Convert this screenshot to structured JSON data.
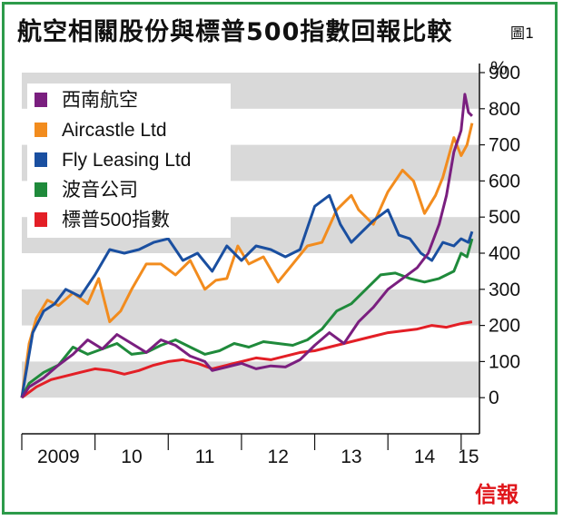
{
  "title": "航空相關股份與標普500指數回報比較",
  "figure_label": "圖1",
  "brand": "信報",
  "chart_data": {
    "type": "line",
    "title": "航空相關股份與標普500指數回報比較",
    "ylabel": "%",
    "ylim": [
      -100,
      900
    ],
    "yticks": [
      0,
      100,
      200,
      300,
      400,
      500,
      600,
      700,
      800,
      900
    ],
    "xlim": [
      2009.0,
      2015.25
    ],
    "xticks": [
      {
        "label": "2009",
        "value": 2009.5
      },
      {
        "label": "10",
        "value": 2010.5
      },
      {
        "label": "11",
        "value": 2011.5
      },
      {
        "label": "12",
        "value": 2012.5
      },
      {
        "label": "13",
        "value": 2013.5
      },
      {
        "label": "14",
        "value": 2014.5
      },
      {
        "label": "15",
        "value": 2015.1
      }
    ],
    "grid": "alternating horizontal bands",
    "legend_position": "top-left",
    "series": [
      {
        "name": "西南航空",
        "color": "#7a1f7f",
        "points": [
          [
            2009.0,
            0
          ],
          [
            2009.1,
            30
          ],
          [
            2009.3,
            55
          ],
          [
            2009.5,
            90
          ],
          [
            2009.7,
            120
          ],
          [
            2009.9,
            160
          ],
          [
            2010.1,
            135
          ],
          [
            2010.3,
            175
          ],
          [
            2010.5,
            150
          ],
          [
            2010.7,
            125
          ],
          [
            2010.9,
            160
          ],
          [
            2011.1,
            145
          ],
          [
            2011.3,
            115
          ],
          [
            2011.5,
            100
          ],
          [
            2011.6,
            75
          ],
          [
            2011.8,
            85
          ],
          [
            2012.0,
            95
          ],
          [
            2012.2,
            80
          ],
          [
            2012.4,
            88
          ],
          [
            2012.6,
            85
          ],
          [
            2012.8,
            105
          ],
          [
            2013.0,
            145
          ],
          [
            2013.2,
            180
          ],
          [
            2013.4,
            150
          ],
          [
            2013.6,
            210
          ],
          [
            2013.8,
            250
          ],
          [
            2014.0,
            300
          ],
          [
            2014.2,
            330
          ],
          [
            2014.4,
            360
          ],
          [
            2014.55,
            400
          ],
          [
            2014.7,
            480
          ],
          [
            2014.8,
            560
          ],
          [
            2014.9,
            680
          ],
          [
            2015.0,
            740
          ],
          [
            2015.05,
            840
          ],
          [
            2015.1,
            790
          ],
          [
            2015.15,
            780
          ]
        ]
      },
      {
        "name": "Aircastle Ltd",
        "color": "#f28c1e",
        "points": [
          [
            2009.0,
            0
          ],
          [
            2009.1,
            150
          ],
          [
            2009.2,
            220
          ],
          [
            2009.35,
            270
          ],
          [
            2009.5,
            255
          ],
          [
            2009.7,
            290
          ],
          [
            2009.9,
            260
          ],
          [
            2010.05,
            330
          ],
          [
            2010.2,
            210
          ],
          [
            2010.35,
            240
          ],
          [
            2010.5,
            300
          ],
          [
            2010.7,
            370
          ],
          [
            2010.9,
            370
          ],
          [
            2011.1,
            340
          ],
          [
            2011.3,
            380
          ],
          [
            2011.5,
            300
          ],
          [
            2011.65,
            325
          ],
          [
            2011.8,
            330
          ],
          [
            2011.95,
            420
          ],
          [
            2012.1,
            370
          ],
          [
            2012.3,
            390
          ],
          [
            2012.5,
            320
          ],
          [
            2012.7,
            370
          ],
          [
            2012.9,
            420
          ],
          [
            2013.1,
            430
          ],
          [
            2013.3,
            520
          ],
          [
            2013.5,
            560
          ],
          [
            2013.6,
            520
          ],
          [
            2013.8,
            480
          ],
          [
            2014.0,
            570
          ],
          [
            2014.2,
            630
          ],
          [
            2014.35,
            600
          ],
          [
            2014.5,
            510
          ],
          [
            2014.65,
            560
          ],
          [
            2014.75,
            610
          ],
          [
            2014.9,
            720
          ],
          [
            2015.0,
            670
          ],
          [
            2015.08,
            700
          ],
          [
            2015.15,
            760
          ]
        ]
      },
      {
        "name": "Fly Leasing Ltd",
        "color": "#1a4fa0",
        "points": [
          [
            2009.0,
            0
          ],
          [
            2009.15,
            180
          ],
          [
            2009.3,
            240
          ],
          [
            2009.45,
            260
          ],
          [
            2009.6,
            300
          ],
          [
            2009.8,
            280
          ],
          [
            2010.0,
            340
          ],
          [
            2010.2,
            410
          ],
          [
            2010.4,
            400
          ],
          [
            2010.6,
            410
          ],
          [
            2010.8,
            430
          ],
          [
            2011.0,
            440
          ],
          [
            2011.2,
            380
          ],
          [
            2011.4,
            400
          ],
          [
            2011.6,
            350
          ],
          [
            2011.8,
            420
          ],
          [
            2012.0,
            380
          ],
          [
            2012.2,
            420
          ],
          [
            2012.4,
            410
          ],
          [
            2012.6,
            390
          ],
          [
            2012.8,
            410
          ],
          [
            2013.0,
            530
          ],
          [
            2013.2,
            560
          ],
          [
            2013.35,
            480
          ],
          [
            2013.5,
            430
          ],
          [
            2013.65,
            460
          ],
          [
            2013.8,
            490
          ],
          [
            2014.0,
            520
          ],
          [
            2014.15,
            450
          ],
          [
            2014.3,
            440
          ],
          [
            2014.45,
            400
          ],
          [
            2014.6,
            380
          ],
          [
            2014.75,
            430
          ],
          [
            2014.9,
            420
          ],
          [
            2015.0,
            440
          ],
          [
            2015.1,
            430
          ],
          [
            2015.15,
            460
          ]
        ]
      },
      {
        "name": "波音公司",
        "color": "#1f8a3b",
        "points": [
          [
            2009.0,
            0
          ],
          [
            2009.1,
            40
          ],
          [
            2009.3,
            70
          ],
          [
            2009.5,
            90
          ],
          [
            2009.7,
            140
          ],
          [
            2009.9,
            120
          ],
          [
            2010.1,
            135
          ],
          [
            2010.3,
            150
          ],
          [
            2010.5,
            120
          ],
          [
            2010.7,
            125
          ],
          [
            2010.9,
            145
          ],
          [
            2011.1,
            160
          ],
          [
            2011.3,
            140
          ],
          [
            2011.5,
            120
          ],
          [
            2011.7,
            130
          ],
          [
            2011.9,
            150
          ],
          [
            2012.1,
            140
          ],
          [
            2012.3,
            155
          ],
          [
            2012.5,
            150
          ],
          [
            2012.7,
            145
          ],
          [
            2012.9,
            160
          ],
          [
            2013.1,
            190
          ],
          [
            2013.3,
            240
          ],
          [
            2013.5,
            260
          ],
          [
            2013.7,
            300
          ],
          [
            2013.9,
            340
          ],
          [
            2014.1,
            345
          ],
          [
            2014.3,
            330
          ],
          [
            2014.5,
            320
          ],
          [
            2014.7,
            330
          ],
          [
            2014.9,
            350
          ],
          [
            2015.0,
            400
          ],
          [
            2015.08,
            390
          ],
          [
            2015.15,
            440
          ]
        ]
      },
      {
        "name": "標普500指數",
        "color": "#e31f26",
        "points": [
          [
            2009.0,
            0
          ],
          [
            2009.2,
            30
          ],
          [
            2009.4,
            50
          ],
          [
            2009.6,
            60
          ],
          [
            2009.8,
            70
          ],
          [
            2010.0,
            80
          ],
          [
            2010.2,
            75
          ],
          [
            2010.4,
            65
          ],
          [
            2010.6,
            75
          ],
          [
            2010.8,
            90
          ],
          [
            2011.0,
            100
          ],
          [
            2011.2,
            105
          ],
          [
            2011.4,
            95
          ],
          [
            2011.6,
            80
          ],
          [
            2011.8,
            90
          ],
          [
            2012.0,
            100
          ],
          [
            2012.2,
            110
          ],
          [
            2012.4,
            105
          ],
          [
            2012.6,
            115
          ],
          [
            2012.8,
            125
          ],
          [
            2013.0,
            130
          ],
          [
            2013.2,
            140
          ],
          [
            2013.4,
            150
          ],
          [
            2013.6,
            160
          ],
          [
            2013.8,
            170
          ],
          [
            2014.0,
            180
          ],
          [
            2014.2,
            185
          ],
          [
            2014.4,
            190
          ],
          [
            2014.6,
            200
          ],
          [
            2014.8,
            195
          ],
          [
            2015.0,
            205
          ],
          [
            2015.15,
            210
          ]
        ]
      }
    ]
  }
}
